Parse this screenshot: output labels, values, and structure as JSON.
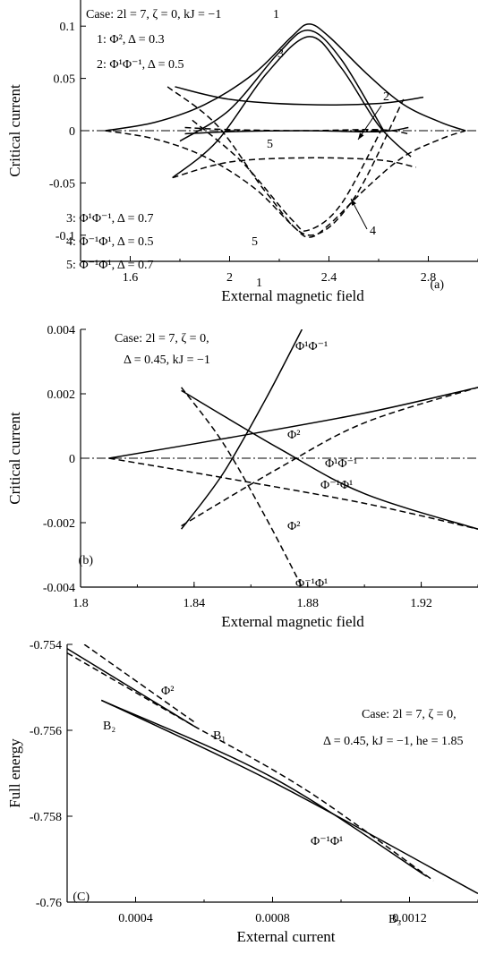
{
  "chart_data": [
    {
      "type": "line",
      "panel_label": "(a)",
      "xlabel": "External magnetic field",
      "ylabel": "Critical current",
      "xlim": [
        1.4,
        3.0
      ],
      "ylim": [
        -0.125,
        0.125
      ],
      "xticks": [
        1.6,
        2,
        2.4,
        2.8
      ],
      "xtick_labels": [
        "1.6",
        "2",
        "2.4",
        "2.8"
      ],
      "yticks": [
        0.1,
        0.05,
        0,
        -0.05,
        -0.1
      ],
      "ytick_labels": [
        "0.1",
        "0.05",
        "0",
        "-0.05",
        "-0.1"
      ],
      "zero_line": "dash-dot",
      "annotations": [
        "Case: 2l = 7, ζ = 0, kJ = −1",
        "1: Φ², Δ = 0.3",
        "2: Φ¹Φ⁻¹, Δ = 0.5",
        "3: Φ¹Φ⁻¹, Δ = 0.7",
        "4: Φ⁻¹Φ¹, Δ = 0.5",
        "5: Φ⁻¹Φ¹, Δ = 0.7"
      ],
      "curve_labels": [
        "1",
        "3",
        "2",
        "5",
        "5",
        "1",
        "4"
      ],
      "series": [
        {
          "label": "1",
          "style": "solid",
          "x": [
            1.5,
            1.7,
            1.9,
            2.1,
            2.25,
            2.32,
            2.4,
            2.55,
            2.7,
            2.85,
            2.95
          ],
          "y": [
            0,
            0.008,
            0.025,
            0.055,
            0.09,
            0.102,
            0.09,
            0.055,
            0.025,
            0.008,
            0
          ]
        },
        {
          "label": "1",
          "style": "dashed",
          "x": [
            1.5,
            1.7,
            1.9,
            2.1,
            2.25,
            2.32,
            2.4,
            2.55,
            2.7,
            2.85,
            2.95
          ],
          "y": [
            0,
            -0.008,
            -0.025,
            -0.055,
            -0.09,
            -0.102,
            -0.09,
            -0.055,
            -0.025,
            -0.008,
            0
          ]
        },
        {
          "label": "2",
          "style": "solid",
          "x": [
            1.8,
            2.0,
            2.2,
            2.32,
            2.45,
            2.62
          ],
          "y": [
            -0.01,
            0.02,
            0.075,
            0.096,
            0.068,
            0.0
          ]
        },
        {
          "label": "2",
          "style": "solid",
          "x": [
            1.78,
            2.0,
            2.3,
            2.6,
            2.78
          ],
          "y": [
            0.042,
            0.03,
            0.025,
            0.026,
            0.032
          ]
        },
        {
          "label": "2",
          "style": "dashed",
          "x": [
            1.75,
            1.95,
            2.15,
            2.32,
            2.5,
            2.7
          ],
          "y": [
            0.042,
            0.005,
            -0.06,
            -0.1,
            -0.065,
            0.03
          ]
        },
        {
          "label": "3",
          "style": "solid",
          "x": [
            1.77,
            1.95,
            2.15,
            2.32,
            2.45,
            2.6,
            2.73
          ],
          "y": [
            -0.045,
            -0.01,
            0.055,
            0.09,
            0.06,
            0.005,
            -0.025
          ]
        },
        {
          "label": "3",
          "style": "dashed",
          "x": [
            1.85,
            2.05,
            2.25,
            2.32,
            2.45,
            2.62
          ],
          "y": [
            0.01,
            -0.03,
            -0.085,
            -0.095,
            -0.07,
            0.005
          ]
        },
        {
          "label": "4",
          "style": "dashed",
          "x": [
            1.77,
            2.0,
            2.3,
            2.6,
            2.75
          ],
          "y": [
            -0.045,
            -0.03,
            -0.026,
            -0.028,
            -0.035
          ]
        },
        {
          "label": "5",
          "style": "solid",
          "x": [
            1.82,
            2.0,
            2.3,
            2.6,
            2.72
          ],
          "y": [
            -0.003,
            -0.001,
            0.0,
            -0.001,
            0.003
          ]
        },
        {
          "label": "5",
          "style": "dashed",
          "x": [
            1.82,
            2.0,
            2.3,
            2.6,
            2.72
          ],
          "y": [
            0.003,
            0.001,
            0.0,
            0.001,
            -0.003
          ]
        }
      ]
    },
    {
      "type": "line",
      "panel_label": "(b)",
      "xlabel": "External magnetic field",
      "ylabel": "Critical current",
      "xlim": [
        1.8,
        1.94
      ],
      "ylim": [
        -0.004,
        0.004
      ],
      "xticks": [
        1.8,
        1.84,
        1.88,
        1.92
      ],
      "xtick_labels": [
        "1.8",
        "1.84",
        "1.88",
        "1.92"
      ],
      "yticks": [
        0.004,
        0.002,
        0,
        -0.002,
        -0.004
      ],
      "ytick_labels": [
        "0.004",
        "0.002",
        "0",
        "-0.002",
        "-0.004"
      ],
      "zero_line": "dash-dot",
      "annotations": [
        "Case: 2l = 7, ζ = 0,",
        "Δ = 0.45, kJ = −1"
      ],
      "curve_labels": [
        "Φ¹Φ⁻¹",
        "Φ²",
        "Φ¹Φ⁻¹",
        "Φ⁻¹Φ¹",
        "Φ²",
        "Φ⁻¹Φ¹"
      ],
      "series": [
        {
          "label": "Φ¹Φ⁻¹",
          "style": "solid",
          "x": [
            1.8355,
            1.85,
            1.865,
            1.878
          ],
          "y": [
            -0.0022,
            -0.0005,
            0.0018,
            0.004
          ]
        },
        {
          "label": "Φ⁻¹Φ¹",
          "style": "dashed",
          "x": [
            1.8355,
            1.85,
            1.865,
            1.878
          ],
          "y": [
            0.0022,
            0.0005,
            -0.0018,
            -0.004
          ]
        },
        {
          "label": "Φ²",
          "style": "solid",
          "x": [
            1.81,
            1.85,
            1.9,
            1.94
          ],
          "y": [
            0.0,
            0.0006,
            0.0014,
            0.0022
          ]
        },
        {
          "label": "Φ²",
          "style": "dashed",
          "x": [
            1.81,
            1.85,
            1.9,
            1.94
          ],
          "y": [
            0.0,
            -0.0006,
            -0.0014,
            -0.0022
          ]
        },
        {
          "label": "Φ⁻¹Φ¹",
          "style": "solid",
          "x": [
            1.8355,
            1.87,
            1.9,
            1.94
          ],
          "y": [
            0.0021,
            0.0003,
            -0.0011,
            -0.0022
          ]
        },
        {
          "label": "Φ¹Φ⁻¹",
          "style": "dashed",
          "x": [
            1.8355,
            1.87,
            1.9,
            1.94
          ],
          "y": [
            -0.0021,
            -0.0003,
            0.0011,
            0.0022
          ]
        }
      ]
    },
    {
      "type": "line",
      "panel_label": "(C)",
      "xlabel": "External current",
      "ylabel": "Full energy",
      "xlim": [
        0.0002,
        0.0014
      ],
      "ylim": [
        -0.76,
        -0.754
      ],
      "xticks": [
        0.0004,
        0.0008,
        0.0012
      ],
      "xtick_labels": [
        "0.0004",
        "0.0008",
        "0.0012"
      ],
      "yticks": [
        -0.754,
        -0.756,
        -0.758,
        -0.76
      ],
      "ytick_labels": [
        "-0.754",
        "-0.756",
        "-0.758",
        "-0.76"
      ],
      "annotations": [
        "Case: 2l = 7, ζ = 0,",
        "Δ = 0.45, kJ = −1, he = 1.85"
      ],
      "curve_labels": [
        "Φ²",
        "B₂",
        "B₁",
        "Φ⁻¹Φ¹",
        "B₃"
      ],
      "series": [
        {
          "label": "Φ²",
          "style": "dashed",
          "x": [
            0.00025,
            0.00057
          ],
          "y": [
            -0.754,
            -0.7558
          ]
        },
        {
          "label": "Φ²",
          "style": "solid",
          "x": [
            0.0002,
            0.00057
          ],
          "y": [
            -0.7541,
            -0.7559
          ]
        },
        {
          "label": "Φ²",
          "style": "dashed",
          "x": [
            0.0002,
            0.00057
          ],
          "y": [
            -0.7542,
            -0.7559
          ]
        },
        {
          "label": "Φ⁻¹Φ¹",
          "style": "solid",
          "x": [
            0.0003,
            0.0008,
            0.00125
          ],
          "y": [
            -0.7553,
            -0.7571,
            -0.7594
          ]
        },
        {
          "label": "Φ⁻¹Φ¹",
          "style": "solid",
          "x": [
            0.0003,
            0.0008,
            0.0014
          ],
          "y": [
            -0.7553,
            -0.7572,
            -0.7598
          ]
        },
        {
          "label": "Φ⁻¹Φ¹",
          "style": "dashed",
          "x": [
            0.00057,
            0.0009,
            0.00127
          ],
          "y": [
            -0.7559,
            -0.7574,
            -0.7595
          ]
        }
      ]
    }
  ]
}
